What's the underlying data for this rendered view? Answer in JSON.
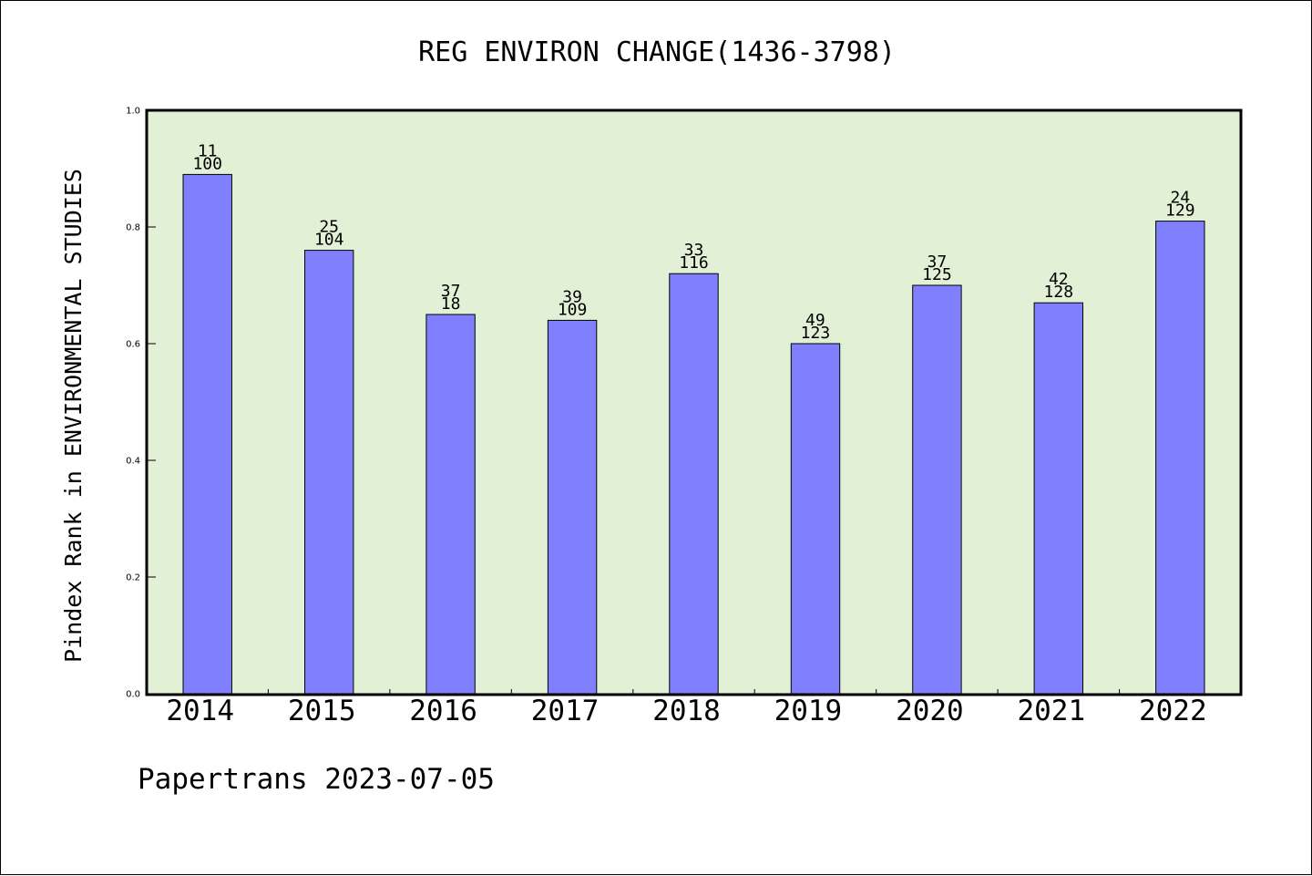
{
  "chart_data": {
    "type": "bar",
    "title": "REG ENVIRON CHANGE(1436-3798)",
    "ylabel": "Pindex Rank in ENVIRONMENTAL STUDIES",
    "xlabel": "",
    "footer": "Papertrans 2023-07-05",
    "categories": [
      "2014",
      "2015",
      "2016",
      "2017",
      "2018",
      "2019",
      "2020",
      "2021",
      "2022"
    ],
    "values": [
      0.89,
      0.76,
      0.65,
      0.64,
      0.72,
      0.6,
      0.7,
      0.67,
      0.81
    ],
    "label_top": [
      "11",
      "25",
      "37",
      "39",
      "33",
      "49",
      "37",
      "42",
      "24"
    ],
    "label_bottom": [
      "100",
      "104",
      "18",
      "109",
      "116",
      "123",
      "125",
      "128",
      "129"
    ],
    "ylim": [
      0,
      1.0
    ],
    "yticks": [
      "0.0",
      "0.2",
      "0.4",
      "0.6",
      "0.8",
      "1.0"
    ],
    "grid": false,
    "legend": "none",
    "colors": {
      "bar_fill": "#8080ff",
      "bar_stroke": "#000000",
      "plot_background": "#e2f0d6",
      "frame": "#000000"
    }
  }
}
